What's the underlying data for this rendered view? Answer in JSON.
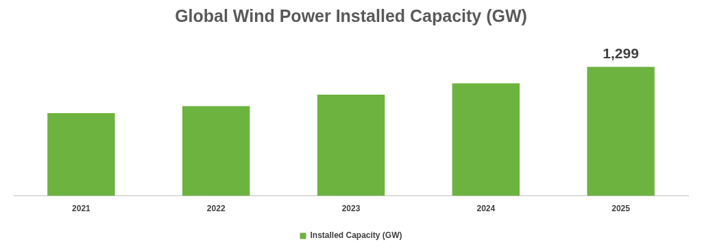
{
  "chart_data": {
    "type": "bar",
    "title": "Global Wind Power Installed Capacity (GW)",
    "categories": [
      "2021",
      "2022",
      "2023",
      "2024",
      "2025"
    ],
    "series": [
      {
        "name": "Installed Capacity (GW)",
        "color": "#6db33f",
        "values": [
          834,
          904,
          1019,
          1133,
          1299
        ],
        "value_labels": [
          null,
          null,
          null,
          null,
          "1,299"
        ]
      }
    ],
    "grid": false,
    "legend": "bottom",
    "tick_labels": "x"
  }
}
